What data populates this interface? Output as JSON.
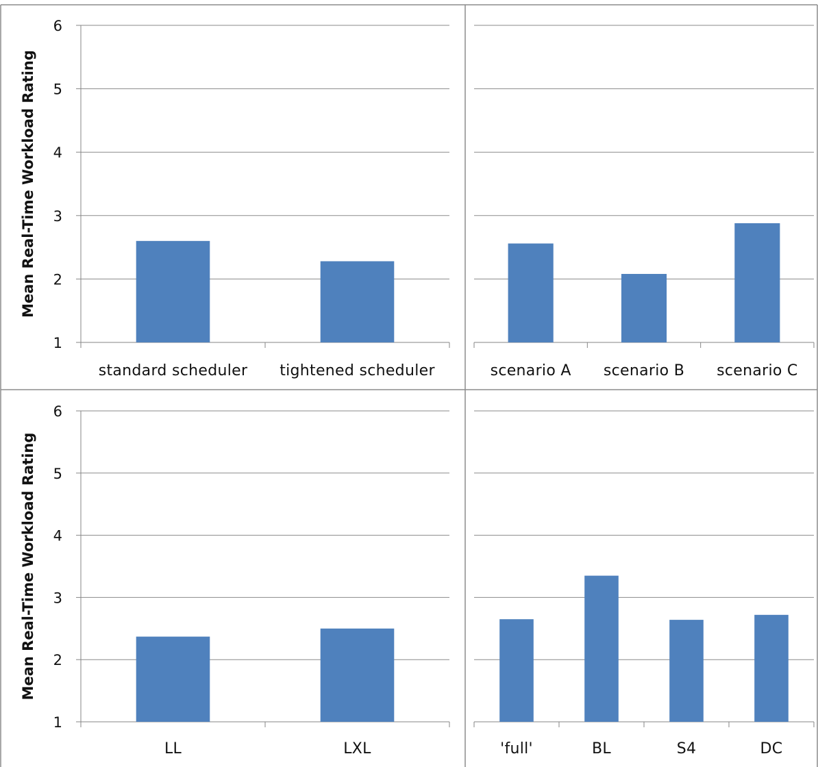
{
  "colors": {
    "bar": "#4f81bd",
    "grid": "#8a8a8a",
    "frame": "#8c8c8c"
  },
  "chart_data": [
    {
      "type": "bar",
      "ylabel": "Mean Real-Time Workload Rating",
      "ylim": [
        1,
        6
      ],
      "yticks": [
        "1",
        "2",
        "3",
        "4",
        "5",
        "6"
      ],
      "grid": true,
      "categories": [
        "standard scheduler",
        "tightened scheduler"
      ],
      "values": [
        2.6,
        2.28
      ]
    },
    {
      "type": "bar",
      "ylabel": "",
      "ylim": [
        1,
        6
      ],
      "yticks": [],
      "grid": true,
      "categories": [
        "scenario A",
        "scenario B",
        "scenario C"
      ],
      "values": [
        2.56,
        2.08,
        2.88
      ]
    },
    {
      "type": "bar",
      "ylabel": "Mean Real-Time Workload Rating",
      "ylim": [
        1,
        6
      ],
      "yticks": [
        "1",
        "2",
        "3",
        "4",
        "5",
        "6"
      ],
      "grid": true,
      "categories": [
        "LL",
        "LXL"
      ],
      "values": [
        2.37,
        2.5
      ]
    },
    {
      "type": "bar",
      "ylabel": "",
      "ylim": [
        1,
        6
      ],
      "yticks": [],
      "grid": true,
      "categories": [
        "'full'",
        "BL",
        "S4",
        "DC"
      ],
      "values": [
        2.65,
        3.35,
        2.64,
        2.72
      ]
    }
  ]
}
